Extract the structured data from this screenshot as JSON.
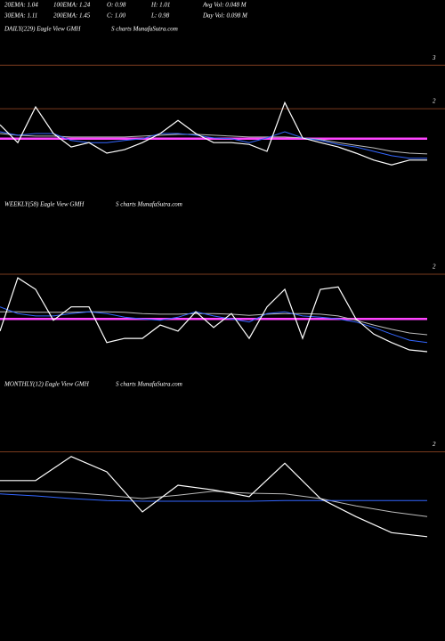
{
  "header": {
    "row1": [
      "20EMA: 1.04",
      "100EMA: 1.24",
      "O: 0.98",
      "H: 1.01",
      "Avg Vol: 0.048 M"
    ],
    "row2": [
      "30EMA: 1.11",
      "200EMA: 1.45",
      "C: 1.00",
      "L: 0.98",
      "Day Vol: 0.098 M"
    ]
  },
  "chart_data": [
    {
      "type": "line",
      "label": "DAILY(229) Eagle  View  GMH",
      "watermark": "S charts MunafaSutra.com",
      "categories": [
        null,
        null,
        null,
        null,
        null,
        null,
        null,
        null,
        null,
        null,
        null,
        null,
        null,
        null,
        null,
        null,
        null,
        null,
        null,
        null,
        null,
        null,
        null,
        null,
        null
      ],
      "ylim": [
        0.1,
        3.27
      ],
      "yticks": [
        3,
        2
      ],
      "grid_color": "#7a3b1e",
      "series": [
        {
          "color": "#ff44ff",
          "values": [
            1.31,
            1.31,
            1.31,
            1.31,
            1.31,
            1.31,
            1.31,
            1.31,
            1.31,
            1.31,
            1.31,
            1.31,
            1.31,
            1.31,
            1.31,
            1.31,
            1.31,
            1.31,
            1.31,
            1.31,
            1.31,
            1.31,
            1.31,
            1.31,
            1.31
          ]
        },
        {
          "color": "#bbbbbb",
          "values": [
            1.43,
            1.39,
            1.37,
            1.37,
            1.35,
            1.35,
            1.35,
            1.35,
            1.37,
            1.39,
            1.41,
            1.41,
            1.39,
            1.37,
            1.35,
            1.35,
            1.35,
            1.33,
            1.29,
            1.22,
            1.16,
            1.1,
            1.02,
            0.98,
            0.96
          ]
        },
        {
          "color": "#3366ff",
          "values": [
            1.47,
            1.39,
            1.43,
            1.43,
            1.27,
            1.22,
            1.22,
            1.27,
            1.31,
            1.43,
            1.43,
            1.39,
            1.33,
            1.31,
            1.22,
            1.33,
            1.47,
            1.33,
            1.27,
            1.18,
            1.12,
            1.02,
            0.92,
            0.86,
            0.86
          ]
        },
        {
          "color": "#ffffff",
          "values": [
            1.63,
            1.22,
            2.04,
            1.43,
            1.12,
            1.22,
            0.98,
            1.06,
            1.22,
            1.43,
            1.73,
            1.43,
            1.22,
            1.22,
            1.18,
            1.02,
            2.14,
            1.33,
            1.22,
            1.12,
            0.98,
            0.82,
            0.71,
            0.82,
            0.82
          ]
        }
      ]
    },
    {
      "type": "line",
      "label": "WEEKLY(58) Eagle  View  GMH",
      "watermark": "S charts MunafaSutra.com",
      "categories": [
        null,
        null,
        null,
        null,
        null,
        null,
        null,
        null,
        null,
        null,
        null,
        null,
        null,
        null,
        null,
        null,
        null,
        null,
        null,
        null,
        null,
        null,
        null,
        null,
        null
      ],
      "ylim": [
        0.5,
        3.0
      ],
      "yticks": [
        2
      ],
      "grid_color": "#7a3b1e",
      "series": [
        {
          "color": "#ff44ff",
          "values": [
            1.26,
            1.26,
            1.26,
            1.26,
            1.26,
            1.26,
            1.26,
            1.26,
            1.26,
            1.26,
            1.26,
            1.26,
            1.26,
            1.26,
            1.26,
            1.26,
            1.26,
            1.26,
            1.26,
            1.26,
            1.26,
            1.26,
            1.26,
            1.26,
            1.26
          ]
        },
        {
          "color": "#bbbbbb",
          "values": [
            1.38,
            1.38,
            1.37,
            1.37,
            1.37,
            1.38,
            1.38,
            1.37,
            1.35,
            1.34,
            1.34,
            1.35,
            1.35,
            1.34,
            1.32,
            1.34,
            1.35,
            1.35,
            1.34,
            1.31,
            1.24,
            1.16,
            1.09,
            1.03,
            1.0
          ]
        },
        {
          "color": "#3366ff",
          "values": [
            1.46,
            1.35,
            1.31,
            1.31,
            1.35,
            1.38,
            1.35,
            1.29,
            1.26,
            1.24,
            1.29,
            1.38,
            1.31,
            1.26,
            1.21,
            1.35,
            1.38,
            1.31,
            1.29,
            1.26,
            1.21,
            1.12,
            1.01,
            0.91,
            0.87
          ]
        },
        {
          "color": "#ffffff",
          "values": [
            1.06,
            1.94,
            1.75,
            1.24,
            1.46,
            1.46,
            0.87,
            0.94,
            0.94,
            1.16,
            1.06,
            1.38,
            1.12,
            1.35,
            0.94,
            1.46,
            1.75,
            0.94,
            1.75,
            1.79,
            1.26,
            1.01,
            0.87,
            0.75,
            0.72
          ]
        }
      ]
    },
    {
      "type": "line",
      "label": "MONTHLY(12) Eagle  View  GMH",
      "watermark": "S charts MunafaSutra.com",
      "categories": [
        null,
        null,
        null,
        null,
        null,
        null,
        null,
        null,
        null,
        null,
        null,
        null,
        null
      ],
      "ylim": [
        0.5,
        2.5
      ],
      "yticks": [
        2
      ],
      "grid_color": "#7a3b1e",
      "series": [
        {
          "color": "#bbbbbb",
          "values": [
            1.41,
            1.41,
            1.39,
            1.35,
            1.3,
            1.35,
            1.41,
            1.38,
            1.37,
            1.3,
            1.19,
            1.1,
            1.03
          ]
        },
        {
          "color": "#3366ff",
          "values": [
            1.37,
            1.34,
            1.3,
            1.27,
            1.26,
            1.26,
            1.26,
            1.26,
            1.27,
            1.27,
            1.27,
            1.27,
            1.27
          ]
        },
        {
          "color": "#ffffff",
          "values": [
            1.57,
            1.57,
            1.93,
            1.7,
            1.1,
            1.5,
            1.43,
            1.33,
            1.83,
            1.3,
            1.03,
            0.79,
            0.73
          ]
        }
      ]
    }
  ]
}
